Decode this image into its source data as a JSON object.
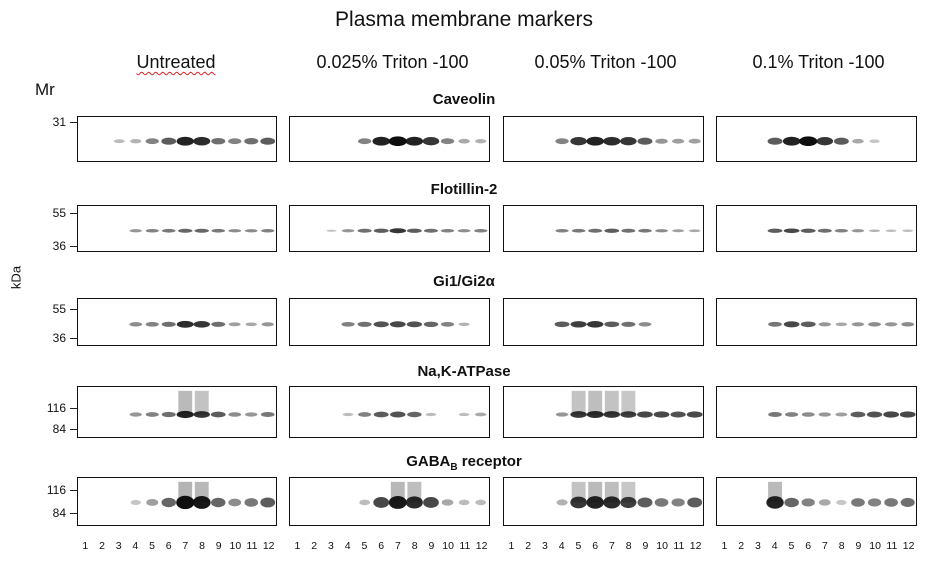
{
  "figure": {
    "title": "Plasma membrane markers",
    "y_unit": "kDa",
    "mr_label": "Mr",
    "conditions": [
      "Untreated",
      "0.025% Triton -100",
      "0.05% Triton -100",
      "0.1% Triton -100"
    ],
    "lanes": [
      "1",
      "2",
      "3",
      "4",
      "5",
      "6",
      "7",
      "8",
      "9",
      "10",
      "11",
      "12"
    ],
    "markers": [
      {
        "name": "Caveolin",
        "mw": [
          "31"
        ]
      },
      {
        "name": "Flotillin-2",
        "mw": [
          "55",
          "36"
        ]
      },
      {
        "name": "Gi1/Gi2α",
        "mw": [
          "55",
          "36"
        ]
      },
      {
        "name": "Na,K-ATPase",
        "mw": [
          "116",
          "84"
        ]
      },
      {
        "name": "GABA",
        "subscript": "B",
        "name_suffix": " receptor",
        "mw": [
          "116",
          "84"
        ]
      }
    ],
    "band_intensity": [
      [
        [
          0,
          0,
          0.1,
          0.15,
          0.4,
          0.6,
          0.9,
          0.85,
          0.5,
          0.4,
          0.5,
          0.6
        ],
        [
          0,
          0,
          0,
          0,
          0.4,
          0.9,
          1,
          0.9,
          0.8,
          0.4,
          0.2,
          0.15
        ],
        [
          0,
          0,
          0,
          0.4,
          0.8,
          0.9,
          0.85,
          0.8,
          0.6,
          0.3,
          0.25,
          0.25
        ],
        [
          0,
          0,
          0,
          0.6,
          0.9,
          1,
          0.8,
          0.6,
          0.2,
          0.05,
          0,
          0
        ]
      ],
      [
        [
          0,
          0,
          0,
          0.3,
          0.4,
          0.45,
          0.55,
          0.55,
          0.45,
          0.35,
          0.35,
          0.4
        ],
        [
          0,
          0,
          0.05,
          0.3,
          0.5,
          0.6,
          0.8,
          0.6,
          0.5,
          0.4,
          0.35,
          0.4
        ],
        [
          0,
          0,
          0,
          0.4,
          0.45,
          0.5,
          0.6,
          0.5,
          0.45,
          0.35,
          0.25,
          0.2
        ],
        [
          0,
          0,
          0,
          0.6,
          0.7,
          0.6,
          0.5,
          0.4,
          0.3,
          0.15,
          0.1,
          0.1
        ]
      ],
      [
        [
          0,
          0,
          0,
          0.35,
          0.4,
          0.5,
          0.85,
          0.8,
          0.5,
          0.25,
          0.2,
          0.3
        ],
        [
          0,
          0,
          0,
          0.4,
          0.5,
          0.65,
          0.7,
          0.65,
          0.55,
          0.4,
          0.15,
          0
        ],
        [
          0,
          0,
          0,
          0.6,
          0.75,
          0.8,
          0.6,
          0.5,
          0.35,
          0,
          0,
          0
        ],
        [
          0,
          0,
          0,
          0.45,
          0.7,
          0.6,
          0.3,
          0.2,
          0.3,
          0.35,
          0.3,
          0.35
        ]
      ],
      [
        [
          0,
          0,
          0,
          0.3,
          0.4,
          0.5,
          0.9,
          0.8,
          0.6,
          0.35,
          0.3,
          0.45
        ],
        [
          0,
          0,
          0,
          0.1,
          0.4,
          0.6,
          0.65,
          0.55,
          0.1,
          0,
          0.1,
          0.2
        ],
        [
          0,
          0,
          0,
          0.3,
          0.8,
          0.85,
          0.8,
          0.75,
          0.7,
          0.7,
          0.65,
          0.7
        ],
        [
          0,
          0,
          0,
          0.45,
          0.4,
          0.35,
          0.3,
          0.25,
          0.6,
          0.65,
          0.7,
          0.7
        ]
      ],
      [
        [
          0,
          0,
          0,
          0.05,
          0.25,
          0.55,
          1,
          0.95,
          0.55,
          0.35,
          0.45,
          0.6
        ],
        [
          0,
          0,
          0,
          0,
          0.1,
          0.7,
          0.95,
          0.85,
          0.7,
          0.2,
          0.1,
          0.1
        ],
        [
          0,
          0,
          0,
          0.15,
          0.8,
          0.9,
          0.85,
          0.75,
          0.6,
          0.45,
          0.4,
          0.6
        ],
        [
          0,
          0,
          0,
          0.9,
          0.55,
          0.4,
          0.2,
          0.05,
          0.45,
          0.4,
          0.45,
          0.5
        ]
      ]
    ]
  }
}
